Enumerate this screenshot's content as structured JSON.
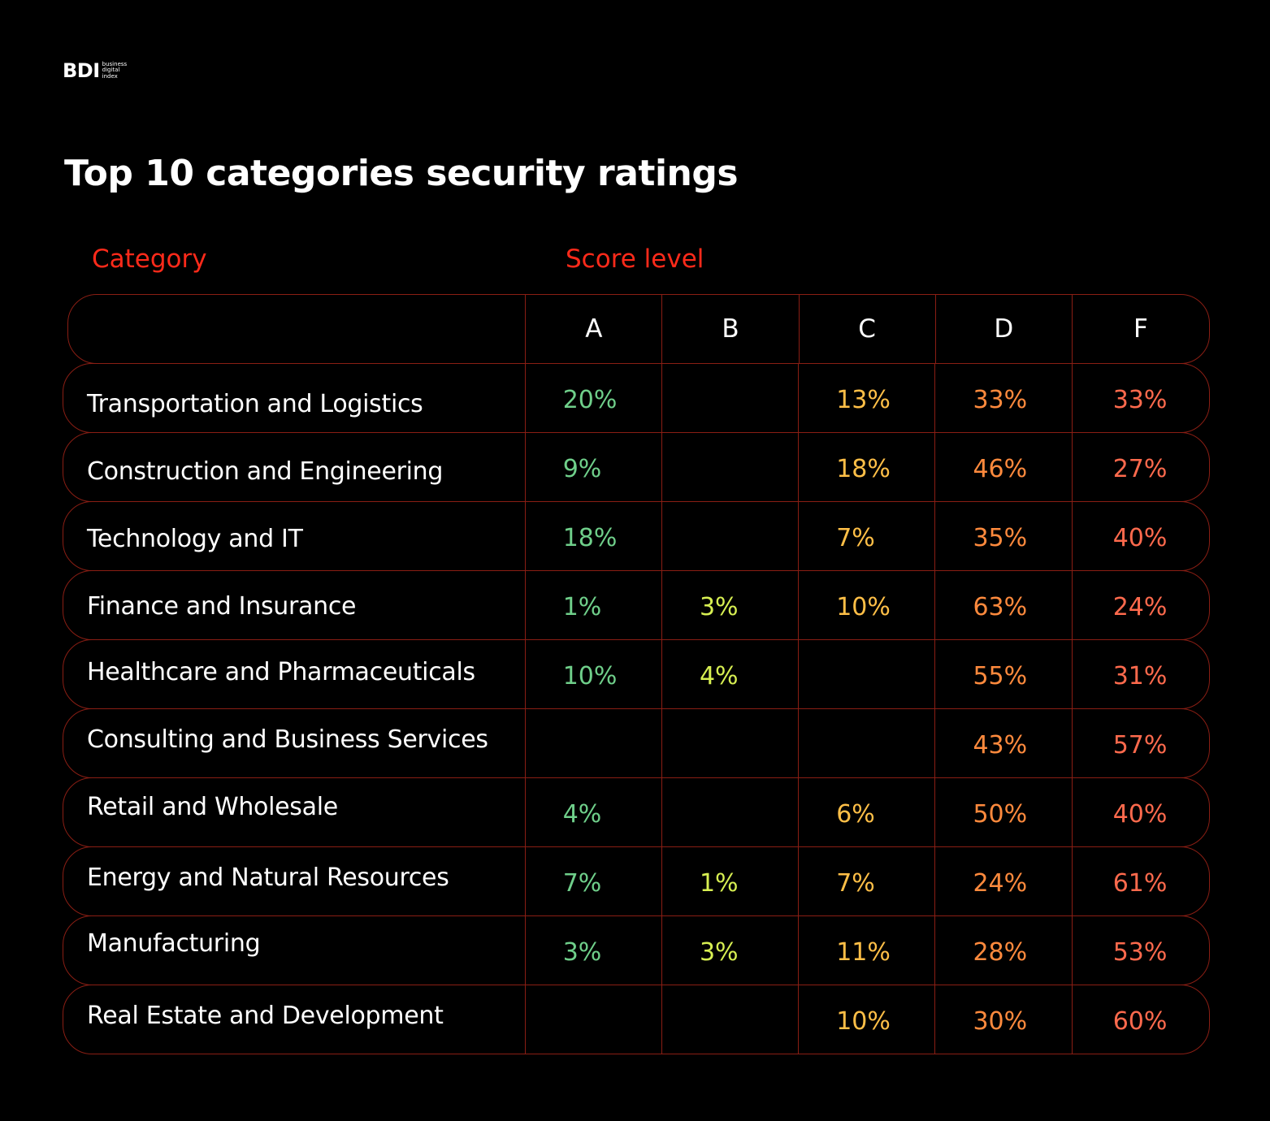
{
  "logo": {
    "mark": "BDI",
    "sub_lines": [
      "business",
      "digital",
      "index"
    ]
  },
  "title": "Top 10 categories security ratings",
  "column_labels": {
    "category": "Category",
    "score_level": "Score level"
  },
  "colors": {
    "A": "#6fcf8a",
    "B": "#d7ef52",
    "C": "#ffbf47",
    "D": "#ff8a3d",
    "F": "#ff6a4d",
    "label_red": "#ff2a1a",
    "border": "#8a1e14"
  },
  "chart_data": {
    "type": "table",
    "title": "Top 10 categories security ratings",
    "columns": [
      "A",
      "B",
      "C",
      "D",
      "F"
    ],
    "rows": [
      {
        "category": "Transportation and Logistics",
        "values": [
          "20%",
          "",
          "13%",
          "33%",
          "33%"
        ]
      },
      {
        "category": "Construction and Engineering",
        "values": [
          "9%",
          "",
          "18%",
          "46%",
          "27%"
        ]
      },
      {
        "category": "Technology and IT",
        "values": [
          "18%",
          "",
          "7%",
          "35%",
          "40%"
        ]
      },
      {
        "category": "Finance and Insurance",
        "values": [
          "1%",
          "3%",
          "10%",
          "63%",
          "24%"
        ]
      },
      {
        "category": "Healthcare and Pharmaceuticals",
        "values": [
          "10%",
          "4%",
          "",
          "55%",
          "31%"
        ]
      },
      {
        "category": "Consulting and Business Services",
        "values": [
          "",
          "",
          "",
          "43%",
          "57%"
        ]
      },
      {
        "category": "Retail and Wholesale",
        "values": [
          "4%",
          "",
          "6%",
          "50%",
          "40%"
        ]
      },
      {
        "category": "Energy and Natural Resources",
        "values": [
          "7%",
          "1%",
          "7%",
          "24%",
          "61%"
        ]
      },
      {
        "category": "Manufacturing",
        "values": [
          "3%",
          "3%",
          "11%",
          "28%",
          "53%"
        ]
      },
      {
        "category": "Real Estate and Development",
        "values": [
          "",
          "",
          "10%",
          "30%",
          "60%"
        ]
      }
    ]
  }
}
